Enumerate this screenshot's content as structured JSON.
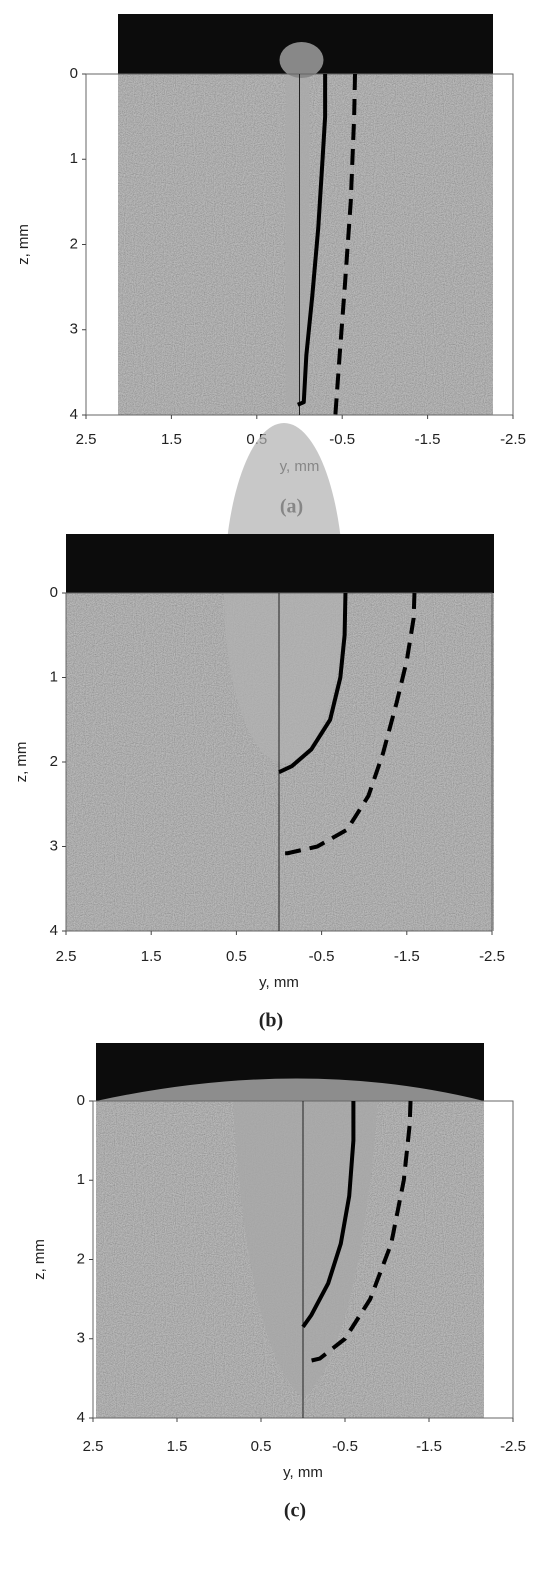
{
  "chart_data": [
    {
      "type": "line",
      "caption": "(a)",
      "xlabel": "y, mm",
      "ylabel": "z, mm",
      "xlim": [
        2.5,
        -2.5
      ],
      "ylim": [
        4,
        0
      ],
      "xticks": [
        2.5,
        1.5,
        0.5,
        -0.5,
        -1.5,
        -2.5
      ],
      "yticks": [
        0,
        1,
        2,
        3,
        4
      ],
      "series": [
        {
          "color": "#000000",
          "dash": false,
          "x": [
            -0.3,
            -0.3,
            -0.27,
            -0.22,
            -0.15,
            -0.08,
            -0.05,
            0.02
          ],
          "values": [
            0,
            0.5,
            1.0,
            1.8,
            2.6,
            3.3,
            3.85,
            3.88
          ]
        },
        {
          "color": "#000000",
          "dash": true,
          "x": [
            -0.65,
            -0.64,
            -0.6,
            -0.53,
            -0.47,
            -0.42
          ],
          "values": [
            0,
            0.5,
            1.5,
            2.5,
            3.3,
            4.0
          ]
        }
      ]
    },
    {
      "type": "line",
      "caption": "(b)",
      "xlabel": "y, mm",
      "ylabel": "z, mm",
      "xlim": [
        2.5,
        -2.5
      ],
      "ylim": [
        4,
        0
      ],
      "xticks": [
        2.5,
        1.5,
        0.5,
        -0.5,
        -1.5,
        -2.5
      ],
      "yticks": [
        0,
        1,
        2,
        3,
        4
      ],
      "series": [
        {
          "color": "#000000",
          "dash": false,
          "x": [
            -0.78,
            -0.77,
            -0.72,
            -0.6,
            -0.38,
            -0.15,
            0
          ],
          "values": [
            0,
            0.5,
            1.0,
            1.5,
            1.85,
            2.05,
            2.12
          ]
        },
        {
          "color": "#000000",
          "dash": true,
          "x": [
            -1.59,
            -1.58,
            -1.5,
            -1.38,
            -1.22,
            -1.05,
            -0.8,
            -0.45,
            -0.1,
            0
          ],
          "values": [
            0,
            0.3,
            0.8,
            1.3,
            1.9,
            2.4,
            2.8,
            3.0,
            3.08,
            3.08
          ]
        }
      ]
    },
    {
      "type": "line",
      "caption": "(c)",
      "xlabel": "y, mm",
      "ylabel": "z, mm",
      "xlim": [
        2.5,
        -2.5
      ],
      "ylim": [
        4,
        0
      ],
      "xticks": [
        2.5,
        1.5,
        0.5,
        -0.5,
        -1.5,
        -2.5
      ],
      "yticks": [
        0,
        1,
        2,
        3,
        4
      ],
      "series": [
        {
          "color": "#000000",
          "dash": false,
          "x": [
            -0.6,
            -0.6,
            -0.55,
            -0.45,
            -0.3,
            -0.1,
            0
          ],
          "values": [
            0,
            0.5,
            1.2,
            1.8,
            2.3,
            2.7,
            2.85
          ]
        },
        {
          "color": "#000000",
          "dash": true,
          "x": [
            -1.28,
            -1.27,
            -1.2,
            -1.05,
            -0.8,
            -0.5,
            -0.2,
            0
          ],
          "values": [
            0,
            0.3,
            1.0,
            1.8,
            2.5,
            3.0,
            3.25,
            3.3
          ]
        }
      ]
    }
  ]
}
